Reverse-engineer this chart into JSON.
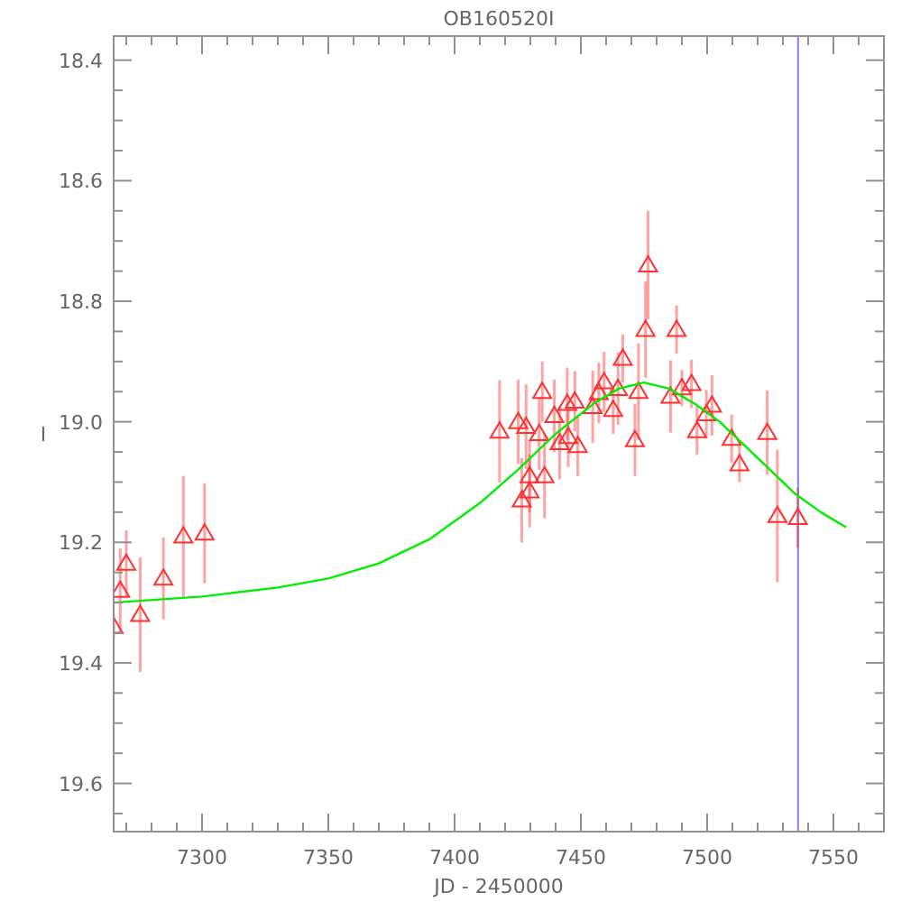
{
  "chart_data": {
    "type": "scatter",
    "title": "OB160520I",
    "xlabel": "JD - 2450000",
    "ylabel": "I",
    "xlim": [
      7265,
      7570
    ],
    "ylim": [
      19.68,
      18.36
    ],
    "xticks": [
      {
        "value": 7270,
        "label": null
      },
      {
        "value": 7280,
        "label": null
      },
      {
        "value": 7290,
        "label": null
      },
      {
        "value": 7300,
        "label": "7300"
      },
      {
        "value": 7310,
        "label": null
      },
      {
        "value": 7320,
        "label": null
      },
      {
        "value": 7330,
        "label": null
      },
      {
        "value": 7340,
        "label": null
      },
      {
        "value": 7350,
        "label": "7350"
      },
      {
        "value": 7360,
        "label": null
      },
      {
        "value": 7370,
        "label": null
      },
      {
        "value": 7380,
        "label": null
      },
      {
        "value": 7390,
        "label": null
      },
      {
        "value": 7400,
        "label": "7400"
      },
      {
        "value": 7410,
        "label": null
      },
      {
        "value": 7420,
        "label": null
      },
      {
        "value": 7430,
        "label": null
      },
      {
        "value": 7440,
        "label": null
      },
      {
        "value": 7450,
        "label": "7450"
      },
      {
        "value": 7460,
        "label": null
      },
      {
        "value": 7470,
        "label": null
      },
      {
        "value": 7480,
        "label": null
      },
      {
        "value": 7490,
        "label": null
      },
      {
        "value": 7500,
        "label": "7500"
      },
      {
        "value": 7510,
        "label": null
      },
      {
        "value": 7520,
        "label": null
      },
      {
        "value": 7530,
        "label": null
      },
      {
        "value": 7540,
        "label": null
      },
      {
        "value": 7550,
        "label": "7550"
      },
      {
        "value": 7560,
        "label": null
      }
    ],
    "yticks": [
      {
        "value": 18.4,
        "label": "18.4"
      },
      {
        "value": 18.45,
        "label": null
      },
      {
        "value": 18.5,
        "label": null
      },
      {
        "value": 18.55,
        "label": null
      },
      {
        "value": 18.6,
        "label": "18.6"
      },
      {
        "value": 18.65,
        "label": null
      },
      {
        "value": 18.7,
        "label": null
      },
      {
        "value": 18.75,
        "label": null
      },
      {
        "value": 18.8,
        "label": "18.8"
      },
      {
        "value": 18.85,
        "label": null
      },
      {
        "value": 18.9,
        "label": null
      },
      {
        "value": 18.95,
        "label": null
      },
      {
        "value": 19.0,
        "label": "19.0"
      },
      {
        "value": 19.05,
        "label": null
      },
      {
        "value": 19.1,
        "label": null
      },
      {
        "value": 19.15,
        "label": null
      },
      {
        "value": 19.2,
        "label": "19.2"
      },
      {
        "value": 19.25,
        "label": null
      },
      {
        "value": 19.3,
        "label": null
      },
      {
        "value": 19.35,
        "label": null
      },
      {
        "value": 19.4,
        "label": "19.4"
      },
      {
        "value": 19.45,
        "label": null
      },
      {
        "value": 19.5,
        "label": null
      },
      {
        "value": 19.55,
        "label": null
      },
      {
        "value": 19.6,
        "label": "19.6"
      },
      {
        "value": 19.65,
        "label": null
      }
    ],
    "grid": false,
    "series": [
      {
        "color": "#ff3030",
        "marker": "triangle",
        "x": [
          7265,
          7267.6,
          7270,
          7275.5,
          7284.7,
          7292.6,
          7301,
          7417.8,
          7425.2,
          7428.3,
          7426.6,
          7429.7,
          7429.7,
          7433.5,
          7434.7,
          7435.6,
          7439.5,
          7441.6,
          7445,
          7444.6,
          7447.6,
          7448.8,
          7454.7,
          7457.1,
          7459.2,
          7462.8,
          7464.7,
          7466.6,
          7471.4,
          7472.8,
          7475.6,
          7476.6,
          7485.5,
          7487.9,
          7490,
          7493.8,
          7496,
          7499.7,
          7501.9,
          7509.7,
          7512.8,
          7523.8,
          7527.8,
          7535.9
        ],
        "values": [
          19.34,
          19.28,
          19.235,
          19.32,
          19.26,
          19.19,
          19.185,
          19.016,
          19.0,
          19.008,
          19.13,
          19.115,
          19.09,
          19.02,
          18.95,
          19.09,
          18.99,
          19.035,
          19.025,
          18.97,
          18.966,
          19.04,
          18.975,
          18.952,
          18.934,
          18.98,
          18.945,
          18.895,
          19.03,
          18.95,
          18.847,
          18.74,
          18.958,
          18.847,
          18.944,
          18.937,
          19.015,
          18.987,
          18.973,
          19.028,
          19.07,
          19.018,
          19.156,
          19.159
        ],
        "errors": [
          0.02,
          0.07,
          0.055,
          0.095,
          0.068,
          0.1,
          0.083,
          0.085,
          0.07,
          0.07,
          0.07,
          0.06,
          0.06,
          0.06,
          0.05,
          0.07,
          0.06,
          0.06,
          0.05,
          0.06,
          0.05,
          0.05,
          0.06,
          0.05,
          0.05,
          0.04,
          0.06,
          0.04,
          0.06,
          0.08,
          0.08,
          0.09,
          0.06,
          0.04,
          0.03,
          0.04,
          0.04,
          0.04,
          0.05,
          0.04,
          0.03,
          0.07,
          0.11,
          0.05
        ]
      },
      {
        "type": "line",
        "color": "#00ee00",
        "marker": "none",
        "line_style": "solid",
        "x": [
          7265,
          7300,
          7330,
          7350,
          7370,
          7390,
          7410,
          7425,
          7440,
          7455,
          7465,
          7475,
          7485,
          7495,
          7505,
          7515,
          7525,
          7535,
          7545,
          7555
        ],
        "values": [
          19.3,
          19.29,
          19.275,
          19.26,
          19.235,
          19.195,
          19.135,
          19.08,
          19.02,
          18.97,
          18.945,
          18.935,
          18.945,
          18.97,
          19.0,
          19.04,
          19.08,
          19.12,
          19.15,
          19.175
        ]
      }
    ],
    "ref_lines": [
      {
        "axis": "x",
        "value": 7536,
        "color": "#8080ff",
        "line_style": "solid"
      }
    ]
  }
}
